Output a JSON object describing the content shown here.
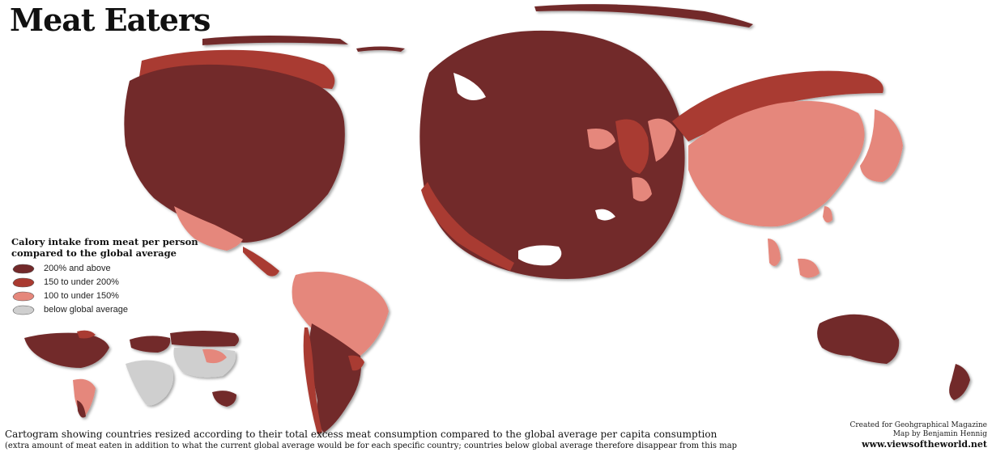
{
  "title": "Meat Eaters",
  "colors": {
    "cat_200": "#72292a",
    "cat_150": "#a93a30",
    "cat_100": "#e5877b",
    "below": "#cfcfcf",
    "border": "#4d1a1a"
  },
  "legend": {
    "title_line1": "Calory intake from meat per person",
    "title_line2": "compared to the global average",
    "items": [
      {
        "label": "200% and above",
        "color": "#72292a"
      },
      {
        "label": "150 to under 200%",
        "color": "#a93a30"
      },
      {
        "label": "100 to under 150%",
        "color": "#e5877b"
      },
      {
        "label": "below global average",
        "color": "#cfcfcf"
      }
    ]
  },
  "caption": {
    "main": "Cartogram showing countries resized according to their total excess meat consumption compared to the global average per capita consumption",
    "sub": "(extra amount of meat eaten in addition to what the current global average would be for each specific country; countries below global average therefore disappear from this map"
  },
  "credits": {
    "line1": "Created for Geohgraphical Magazine",
    "line2": "Map by Benjamin Hennig",
    "url": "www.viewsoftheworld.net"
  }
}
